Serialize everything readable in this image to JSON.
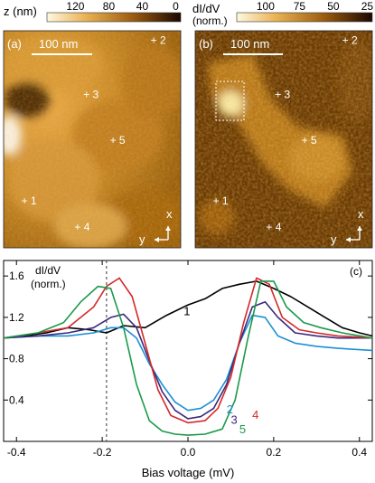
{
  "colorbars": {
    "a": {
      "label": "z (nm)",
      "ticks": [
        "120",
        "80",
        "40",
        "0"
      ]
    },
    "b": {
      "label_line1": "dI/dV",
      "label_line2": "(norm.)",
      "ticks": [
        "100",
        "75",
        "50",
        "25"
      ]
    }
  },
  "images": {
    "a": {
      "panel_label": "(a)",
      "scalebar": "100 nm",
      "points": [
        {
          "label": "+ 1",
          "x": 0.1,
          "y": 0.8
        },
        {
          "label": "+ 2",
          "x": 0.83,
          "y": 0.06
        },
        {
          "label": "+ 3",
          "x": 0.45,
          "y": 0.31
        },
        {
          "label": "+ 4",
          "x": 0.4,
          "y": 0.92
        },
        {
          "label": "+ 5",
          "x": 0.6,
          "y": 0.52
        }
      ],
      "axis_x": "x",
      "axis_y": "y"
    },
    "b": {
      "panel_label": "(b)",
      "scalebar": "100 nm",
      "points": [
        {
          "label": "+ 1",
          "x": 0.1,
          "y": 0.8
        },
        {
          "label": "+ 2",
          "x": 0.83,
          "y": 0.06
        },
        {
          "label": "+ 3",
          "x": 0.45,
          "y": 0.31
        },
        {
          "label": "+ 4",
          "x": 0.4,
          "y": 0.92
        },
        {
          "label": "+ 5",
          "x": 0.6,
          "y": 0.52
        }
      ],
      "axis_x": "x",
      "axis_y": "y"
    }
  },
  "chart_data": {
    "type": "line",
    "panel_label": "(c)",
    "ylabel_line1": "dI/dV",
    "ylabel_line2": "(norm.)",
    "xlabel": "Bias voltage (mV)",
    "xlim": [
      -0.43,
      0.43
    ],
    "ylim": [
      0.0,
      1.75
    ],
    "xticks": [
      -0.4,
      -0.2,
      0.0,
      0.2,
      0.4
    ],
    "xtick_labels": [
      "-0.4",
      "-0.2",
      "0.0",
      "0.2",
      "0.4"
    ],
    "yticks": [
      0.4,
      0.8,
      1.2,
      1.6
    ],
    "ytick_labels": [
      "0.4",
      "0.8",
      "1.2",
      "1.6"
    ],
    "reference_line_x": -0.19,
    "series": [
      {
        "name": "1",
        "color": "#000000",
        "x": [
          -0.43,
          -0.38,
          -0.33,
          -0.28,
          -0.23,
          -0.19,
          -0.15,
          -0.1,
          -0.05,
          0.0,
          0.04,
          0.08,
          0.12,
          0.16,
          0.2,
          0.24,
          0.28,
          0.32,
          0.36,
          0.4,
          0.43
        ],
        "y": [
          1.0,
          1.02,
          1.05,
          1.1,
          1.08,
          1.05,
          1.12,
          1.1,
          1.22,
          1.32,
          1.38,
          1.48,
          1.52,
          1.55,
          1.48,
          1.4,
          1.3,
          1.2,
          1.1,
          1.05,
          1.02
        ]
      },
      {
        "name": "2",
        "color": "#1e8fd6",
        "x": [
          -0.43,
          -0.35,
          -0.28,
          -0.22,
          -0.18,
          -0.15,
          -0.12,
          -0.09,
          -0.06,
          -0.03,
          0.0,
          0.03,
          0.06,
          0.09,
          0.12,
          0.15,
          0.18,
          0.21,
          0.25,
          0.3,
          0.35,
          0.43
        ],
        "y": [
          1.0,
          1.02,
          1.02,
          1.05,
          1.1,
          1.1,
          1.0,
          0.75,
          0.55,
          0.38,
          0.3,
          0.32,
          0.4,
          0.6,
          0.95,
          1.22,
          1.2,
          1.02,
          0.95,
          0.92,
          0.9,
          0.88
        ]
      },
      {
        "name": "3",
        "color": "#3a2a7a",
        "x": [
          -0.43,
          -0.35,
          -0.28,
          -0.22,
          -0.18,
          -0.15,
          -0.12,
          -0.09,
          -0.06,
          -0.03,
          0.0,
          0.03,
          0.06,
          0.09,
          0.12,
          0.15,
          0.18,
          0.21,
          0.25,
          0.3,
          0.35,
          0.43
        ],
        "y": [
          1.0,
          1.02,
          1.05,
          1.1,
          1.2,
          1.23,
          1.1,
          0.78,
          0.48,
          0.3,
          0.22,
          0.24,
          0.32,
          0.55,
          0.95,
          1.3,
          1.35,
          1.2,
          1.05,
          1.02,
          1.0,
          1.0
        ]
      },
      {
        "name": "4",
        "color": "#d42a2a",
        "x": [
          -0.43,
          -0.35,
          -0.28,
          -0.22,
          -0.19,
          -0.16,
          -0.13,
          -0.1,
          -0.07,
          -0.04,
          0.0,
          0.04,
          0.07,
          0.1,
          0.13,
          0.16,
          0.19,
          0.22,
          0.26,
          0.3,
          0.35,
          0.43
        ],
        "y": [
          1.0,
          1.05,
          1.1,
          1.3,
          1.5,
          1.58,
          1.4,
          0.95,
          0.5,
          0.25,
          0.18,
          0.2,
          0.32,
          0.62,
          1.15,
          1.58,
          1.52,
          1.2,
          1.08,
          1.05,
          1.02,
          1.0
        ]
      },
      {
        "name": "5",
        "color": "#1a9a4a",
        "x": [
          -0.43,
          -0.35,
          -0.29,
          -0.25,
          -0.21,
          -0.18,
          -0.15,
          -0.12,
          -0.09,
          -0.06,
          -0.03,
          0.0,
          0.04,
          0.08,
          0.11,
          0.14,
          0.17,
          0.2,
          0.23,
          0.27,
          0.31,
          0.36,
          0.43
        ],
        "y": [
          1.0,
          1.05,
          1.15,
          1.35,
          1.5,
          1.48,
          1.1,
          0.55,
          0.2,
          0.1,
          0.07,
          0.06,
          0.07,
          0.12,
          0.4,
          1.0,
          1.55,
          1.55,
          1.3,
          1.15,
          1.1,
          1.05,
          1.0
        ]
      }
    ],
    "series_label_positions": [
      {
        "name": "1",
        "x": -0.01,
        "y": 1.22
      },
      {
        "name": "2",
        "x": 0.09,
        "y": 0.27
      },
      {
        "name": "3",
        "x": 0.1,
        "y": 0.17
      },
      {
        "name": "4",
        "x": 0.15,
        "y": 0.22
      },
      {
        "name": "5",
        "x": 0.12,
        "y": 0.08
      }
    ]
  }
}
